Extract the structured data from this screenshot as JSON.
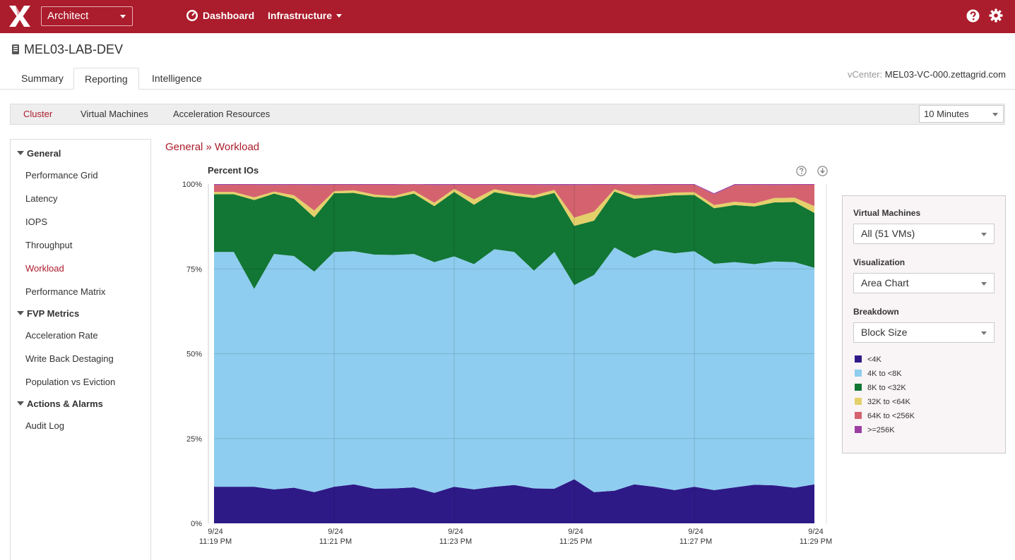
{
  "header": {
    "product": "Architect",
    "nav": {
      "dashboard": "Dashboard",
      "infrastructure": "Infrastructure"
    }
  },
  "page": {
    "title": "MEL03-LAB-DEV"
  },
  "tabs": [
    {
      "label": "Summary"
    },
    {
      "label": "Reporting"
    },
    {
      "label": "Intelligence"
    }
  ],
  "vcenter": {
    "label": "vCenter:",
    "value": "MEL03-VC-000.zettagrid.com"
  },
  "subnav": {
    "items": [
      "Cluster",
      "Virtual Machines",
      "Acceleration Resources"
    ],
    "active": "Cluster"
  },
  "time_range": {
    "value": "10 Minutes"
  },
  "sidebar": {
    "sections": [
      {
        "title": "General",
        "items": [
          "Performance Grid",
          "Latency",
          "IOPS",
          "Throughput",
          "Workload",
          "Performance Matrix"
        ]
      },
      {
        "title": "FVP Metrics",
        "items": [
          "Acceleration Rate",
          "Write Back Destaging",
          "Population vs Eviction"
        ]
      },
      {
        "title": "Actions & Alarms",
        "items": [
          "Audit Log"
        ]
      }
    ],
    "active": "Workload"
  },
  "breadcrumb": "General » Workload",
  "options": {
    "vm_label": "Virtual Machines",
    "vm_value": "All (51 VMs)",
    "viz_label": "Visualization",
    "viz_value": "Area Chart",
    "breakdown_label": "Breakdown",
    "breakdown_value": "Block Size"
  },
  "chart_data": {
    "type": "area",
    "stacked": "percent",
    "title": "Percent IOs",
    "ylim": [
      0,
      100
    ],
    "yticks": [
      "0%",
      "25%",
      "50%",
      "75%",
      "100%"
    ],
    "x_ticks": [
      {
        "date": "9/24",
        "time": "11:19 PM"
      },
      {
        "date": "9/24",
        "time": "11:21 PM"
      },
      {
        "date": "9/24",
        "time": "11:23 PM"
      },
      {
        "date": "9/24",
        "time": "11:25 PM"
      },
      {
        "date": "9/24",
        "time": "11:27 PM"
      },
      {
        "date": "9/24",
        "time": "11:29 PM"
      }
    ],
    "x_range_minutes": [
      0,
      10
    ],
    "x_minutes": [
      0,
      0.33,
      0.67,
      1.0,
      1.33,
      1.67,
      2.0,
      2.33,
      2.67,
      3.0,
      3.33,
      3.67,
      4.0,
      4.33,
      4.67,
      5.0,
      5.33,
      5.67,
      6.0,
      6.33,
      6.67,
      7.0,
      7.33,
      7.67,
      8.0,
      8.33,
      8.67,
      9.0,
      9.33,
      9.67,
      10.0
    ],
    "legend_position": "right",
    "series": [
      {
        "name": "<4K",
        "color": "#2e1a87",
        "values": [
          10.8,
          10.8,
          10.8,
          10.0,
          10.5,
          9.2,
          10.8,
          11.5,
          10.2,
          10.3,
          10.6,
          9.0,
          10.8,
          10.0,
          10.8,
          11.3,
          10.3,
          10.2,
          13.0,
          9.2,
          9.6,
          11.5,
          10.8,
          9.8,
          10.8,
          9.8,
          10.6,
          11.4,
          11.2,
          10.5,
          11.5
        ]
      },
      {
        "name": "4K to <8K",
        "color": "#8ecdef",
        "values": [
          69.2,
          69.2,
          58.3,
          69.4,
          68.3,
          65.0,
          69.2,
          68.7,
          69.0,
          68.8,
          68.8,
          68.0,
          67.9,
          66.4,
          70.0,
          68.7,
          64.2,
          69.8,
          57.2,
          64.0,
          71.7,
          66.7,
          69.8,
          69.8,
          69.4,
          66.7,
          66.4,
          65.0,
          66.0,
          66.5,
          63.8
        ]
      },
      {
        "name": "8K to <32K",
        "color": "#127634",
        "values": [
          17.0,
          17.0,
          26.2,
          17.8,
          16.9,
          16.0,
          17.3,
          17.2,
          17.0,
          16.8,
          17.8,
          16.5,
          19.0,
          17.5,
          16.8,
          16.6,
          21.4,
          17.4,
          17.5,
          16.0,
          16.5,
          17.5,
          15.6,
          17.1,
          16.6,
          16.4,
          16.8,
          17.0,
          17.4,
          17.7,
          16.2
        ]
      },
      {
        "name": "32K to <64K",
        "color": "#e4d06a",
        "values": [
          0.7,
          0.7,
          0.8,
          0.6,
          1.0,
          2.0,
          0.6,
          0.8,
          0.7,
          0.6,
          0.8,
          1.0,
          0.9,
          1.6,
          0.9,
          0.8,
          0.8,
          0.9,
          2.4,
          2.7,
          0.7,
          1.0,
          0.6,
          0.8,
          0.8,
          0.9,
          1.0,
          0.9,
          1.3,
          1.3,
          2.0
        ]
      },
      {
        "name": "64K to <256K",
        "color": "#d4636f",
        "values": [
          2.0,
          2.1,
          3.7,
          1.9,
          3.1,
          7.5,
          1.9,
          1.6,
          2.9,
          3.3,
          1.9,
          5.2,
          1.2,
          4.3,
          1.3,
          2.4,
          3.1,
          1.4,
          9.6,
          7.9,
          1.3,
          3.2,
          3.0,
          2.3,
          2.2,
          3.2,
          4.9,
          5.5,
          3.8,
          3.8,
          6.3
        ]
      },
      {
        "name": ">=256K",
        "color": "#9b3fa3",
        "values": [
          0.3,
          0.2,
          0.2,
          0.3,
          0.2,
          0.3,
          0.2,
          0.2,
          0.2,
          0.2,
          0.1,
          0.3,
          0.2,
          0.2,
          0.2,
          0.2,
          0.2,
          0.3,
          0.3,
          0.2,
          0.2,
          0.1,
          0.2,
          0.2,
          0.2,
          0.3,
          0.3,
          0.2,
          0.3,
          0.2,
          0.2
        ]
      }
    ]
  }
}
